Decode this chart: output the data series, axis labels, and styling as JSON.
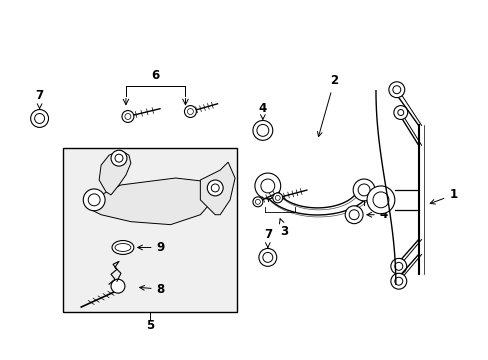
{
  "background_color": "#ffffff",
  "line_color": "#000000",
  "box_fill": "#f0f0f0",
  "figsize": [
    4.89,
    3.6
  ],
  "dpi": 100,
  "lw_main": 1.0,
  "lw_thin": 0.7
}
